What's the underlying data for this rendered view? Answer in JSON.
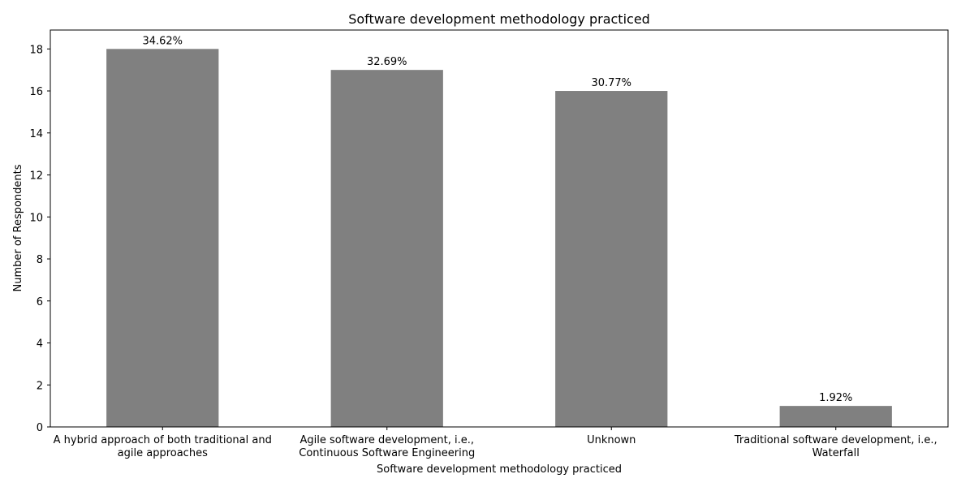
{
  "chart_data": {
    "type": "bar",
    "title": "Software development methodology practiced",
    "xlabel": "Software development methodology practiced",
    "ylabel": "Number of Respondents",
    "categories": [
      [
        "A hybrid approach of both traditional and",
        "agile approaches"
      ],
      [
        "Agile software development, i.e.,",
        "Continuous Software Engineering"
      ],
      [
        "Unknown"
      ],
      [
        "Traditional software development, i.e.,",
        "Waterfall"
      ]
    ],
    "values": [
      18,
      17,
      16,
      1
    ],
    "data_labels": [
      "34.62%",
      "32.69%",
      "30.77%",
      "1.92%"
    ],
    "ylim": [
      0,
      18.9
    ],
    "yticks": [
      0,
      2,
      4,
      6,
      8,
      10,
      12,
      14,
      16,
      18
    ],
    "grid": false,
    "legend": "none",
    "bar_color": "#808080"
  }
}
